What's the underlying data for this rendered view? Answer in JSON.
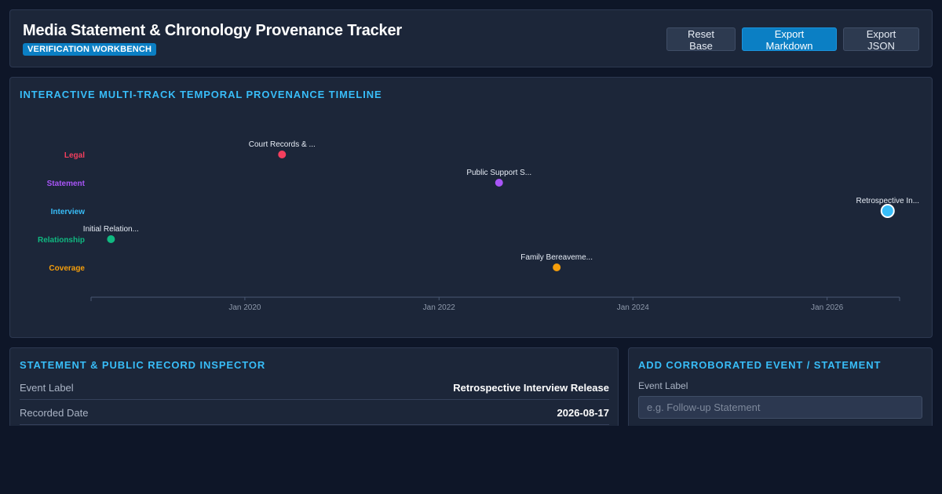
{
  "header": {
    "title": "Media Statement & Chronology Provenance Tracker",
    "badge": "VERIFICATION WORKBENCH",
    "buttons": {
      "reset": "Reset Base",
      "export_md": "Export Markdown",
      "export_json": "Export JSON"
    }
  },
  "timeline": {
    "title": "INTERACTIVE MULTI-TRACK TEMPORAL PROVENANCE TIMELINE",
    "x_start": "2018-06-01",
    "x_end": "2026-10-01",
    "tracks": [
      {
        "id": "legal",
        "label": "Legal",
        "color": "#f43f5e"
      },
      {
        "id": "statement",
        "label": "Statement",
        "color": "#a855f7"
      },
      {
        "id": "interview",
        "label": "Interview",
        "color": "#38bdf8"
      },
      {
        "id": "relationship",
        "label": "Relationship",
        "color": "#10b981"
      },
      {
        "id": "coverage",
        "label": "Coverage",
        "color": "#f59e0b"
      }
    ],
    "ticks": [
      {
        "date": "2020-01-01",
        "label": "Jan 2020"
      },
      {
        "date": "2022-01-01",
        "label": "Jan 2022"
      },
      {
        "date": "2024-01-01",
        "label": "Jan 2024"
      },
      {
        "date": "2026-01-01",
        "label": "Jan 2026"
      }
    ],
    "events": [
      {
        "track": "legal",
        "date": "2020-05-20",
        "label": "Court Records & ...",
        "selected": false
      },
      {
        "track": "statement",
        "date": "2022-08-15",
        "label": "Public Support S...",
        "selected": false
      },
      {
        "track": "interview",
        "date": "2026-08-17",
        "label": "Retrospective In...",
        "selected": true
      },
      {
        "track": "relationship",
        "date": "2018-08-15",
        "label": "Initial Relation...",
        "selected": false
      },
      {
        "track": "coverage",
        "date": "2023-03-20",
        "label": "Family Bereaveme...",
        "selected": false
      }
    ]
  },
  "inspector": {
    "title": "STATEMENT & PUBLIC RECORD INSPECTOR",
    "rows": [
      {
        "key": "Event Label",
        "value": "Retrospective Interview Release"
      },
      {
        "key": "Recorded Date",
        "value": "2026-08-17"
      }
    ]
  },
  "add_form": {
    "title": "ADD CORROBORATED EVENT / STATEMENT",
    "field_label": "Event Label",
    "placeholder": "e.g. Follow-up Statement",
    "value": ""
  }
}
